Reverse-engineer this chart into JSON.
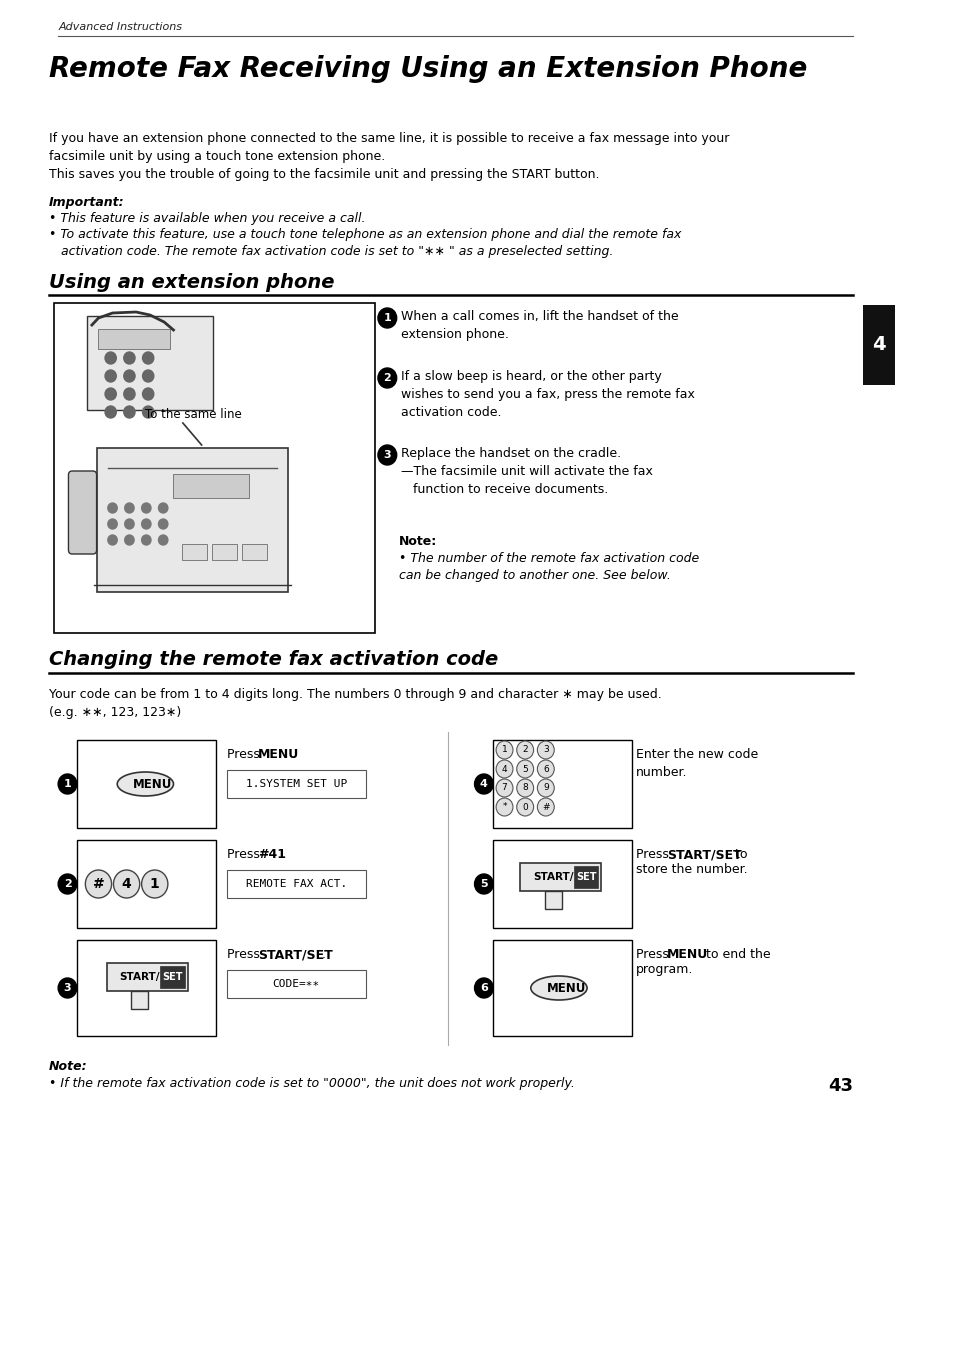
{
  "page_bg": "#ffffff",
  "header_text": "Advanced Instructions",
  "title": "Remote Fax Receiving Using an Extension Phone",
  "intro_text": "If you have an extension phone connected to the same line, it is possible to receive a fax message into your\nfacsimile unit by using a touch tone extension phone.\nThis saves you the trouble of going to the facsimile unit and pressing the START button.",
  "important_label": "Important:",
  "bullet1": "This feature is available when you receive a call.",
  "bullet2": "To activate this feature, use a touch tone telephone as an extension phone and dial the remote fax\n   activation code. The remote fax activation code is set to \"∗∗ \" as a preselected setting.",
  "section2_title": "Using an extension phone",
  "step1_text": "When a call comes in, lift the handset of the\nextension phone.",
  "step2_text": "If a slow beep is heard, or the other party\nwishes to send you a fax, press the remote fax\nactivation code.",
  "step3_text": "Replace the handset on the cradle.\n—The facsimile unit will activate the fax\n   function to receive documents.",
  "note_label": "Note:",
  "note_text": "The number of the remote fax activation code\ncan be changed to another one. See below.",
  "diagram_label": "To the same line",
  "section3_title": "Changing the remote fax activation code",
  "code_desc": "Your code can be from 1 to 4 digits long. The numbers 0 through 9 and character ∗ may be used.\n(e.g. ∗∗, 123, 123∗)",
  "step_1_display": "1.SYSTEM SET UP",
  "step_2_display": "REMOTE FAX ACT.",
  "step_3_display": "CODE=∗∗",
  "step_4_label": "Enter the new code\nnumber.",
  "step_5_label": "Press START/SET to\nstore the number.",
  "step_6_label": "Press MENU to end the\nprogram.",
  "final_note_label": "Note:",
  "final_note_text": "If the remote fax activation code is set to \"0000\", the unit does not work properly.",
  "page_number": "43",
  "tab_color": "#111111",
  "tab_text": "4"
}
